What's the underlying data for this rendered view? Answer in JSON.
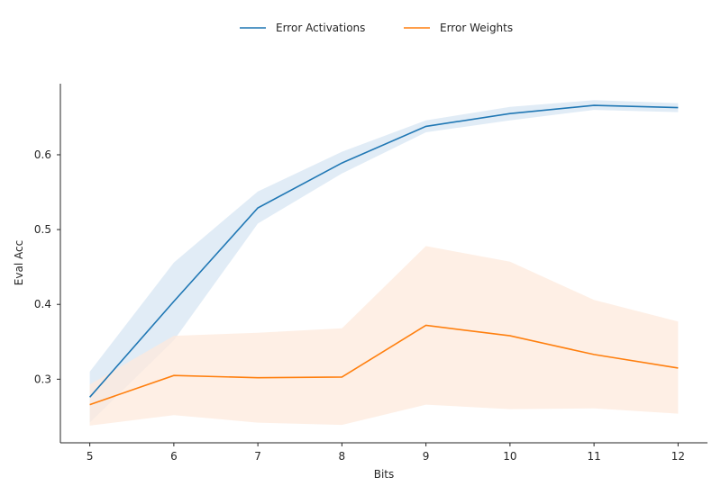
{
  "chart_data": {
    "type": "line",
    "x": [
      5,
      6,
      7,
      8,
      9,
      10,
      11,
      12
    ],
    "xlabel": "Bits",
    "ylabel": "Eval Acc",
    "xlim": [
      4.65,
      12.35
    ],
    "ylim": [
      0.215,
      0.695
    ],
    "xticks": [
      "5",
      "6",
      "7",
      "8",
      "9",
      "10",
      "11",
      "12"
    ],
    "yticks": [
      {
        "value": 0.3,
        "label": "0.3"
      },
      {
        "value": 0.4,
        "label": "0.4"
      },
      {
        "value": 0.5,
        "label": "0.5"
      },
      {
        "value": 0.6,
        "label": "0.6"
      }
    ],
    "grid": false,
    "legend_position": "top-center",
    "series": [
      {
        "name": "Error Activations",
        "color": "#1f77b4",
        "band_color": "#dce9f5",
        "values": [
          0.276,
          0.404,
          0.529,
          0.589,
          0.638,
          0.655,
          0.666,
          0.663
        ],
        "lower": [
          0.242,
          0.352,
          0.508,
          0.575,
          0.63,
          0.646,
          0.66,
          0.657
        ],
        "upper": [
          0.31,
          0.456,
          0.551,
          0.604,
          0.646,
          0.664,
          0.673,
          0.669
        ]
      },
      {
        "name": "Error Weights",
        "color": "#ff7f0e",
        "band_color": "#fdeadc",
        "values": [
          0.266,
          0.305,
          0.302,
          0.303,
          0.372,
          0.358,
          0.333,
          0.315
        ],
        "lower": [
          0.238,
          0.252,
          0.242,
          0.239,
          0.266,
          0.26,
          0.261,
          0.254
        ],
        "upper": [
          0.293,
          0.358,
          0.362,
          0.368,
          0.478,
          0.457,
          0.406,
          0.377
        ]
      }
    ]
  }
}
